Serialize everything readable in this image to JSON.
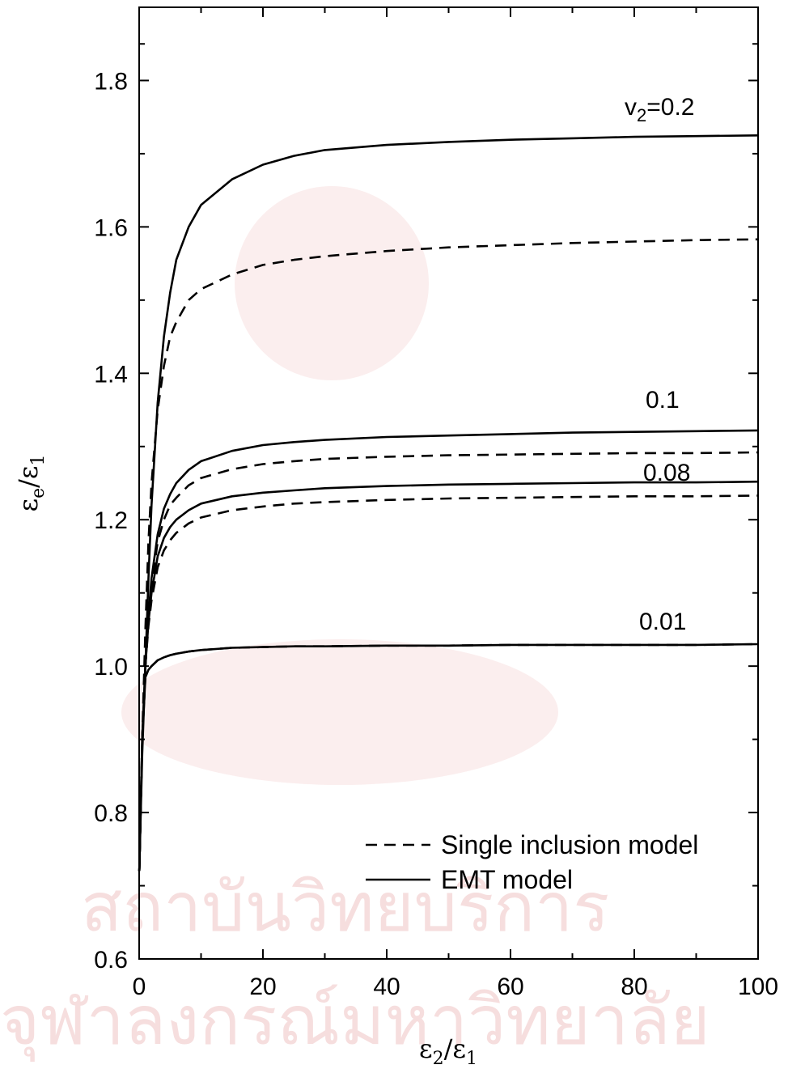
{
  "chart_data": {
    "type": "line",
    "xlabel": {
      "main": "ε",
      "sub": "2",
      "sep": "/",
      "main2": "ε",
      "sub2": "1"
    },
    "ylabel": {
      "main": "ε",
      "sub": "e",
      "sep": "/",
      "main2": "ε",
      "sub2": "1"
    },
    "xlim": [
      0,
      100
    ],
    "ylim": [
      0.6,
      1.9
    ],
    "x_ticks": [
      0,
      20,
      40,
      60,
      80,
      100
    ],
    "x_tick_labels": [
      "0",
      "20",
      "40",
      "60",
      "80",
      "100"
    ],
    "y_ticks": [
      0.6,
      0.8,
      1.0,
      1.2,
      1.4,
      1.6,
      1.8
    ],
    "y_tick_labels": [
      "0.6",
      "0.8",
      "1.0",
      "1.2",
      "1.4",
      "1.6",
      "1.8"
    ],
    "grid": false,
    "legend": {
      "position": "bottom-right",
      "entries": [
        {
          "label": "Single inclusion model",
          "style": "dashed"
        },
        {
          "label": "EMT model",
          "style": "solid"
        }
      ]
    },
    "series_labels": [
      {
        "text": "v",
        "sub": "2",
        "rest": "=0.2"
      },
      {
        "text": "0.1"
      },
      {
        "text": "0.08"
      },
      {
        "text": "0.01"
      }
    ],
    "series": [
      {
        "v2": 0.2,
        "model": "EMT",
        "style": "solid",
        "x": [
          0.02,
          0.5,
          1,
          1.5,
          2,
          3,
          4,
          5,
          6,
          8,
          10,
          15,
          20,
          25,
          30,
          40,
          50,
          60,
          70,
          80,
          90,
          100
        ],
        "y": [
          0.72,
          0.88,
          1.0,
          1.12,
          1.22,
          1.36,
          1.45,
          1.51,
          1.555,
          1.6,
          1.63,
          1.665,
          1.685,
          1.697,
          1.705,
          1.712,
          1.716,
          1.719,
          1.721,
          1.723,
          1.724,
          1.725
        ]
      },
      {
        "v2": 0.2,
        "model": "Single inclusion",
        "style": "dashed",
        "x": [
          0.02,
          0.5,
          1,
          1.5,
          2,
          3,
          4,
          5,
          6,
          8,
          10,
          15,
          20,
          25,
          30,
          40,
          50,
          60,
          70,
          80,
          90,
          100
        ],
        "y": [
          0.72,
          0.9,
          1.05,
          1.17,
          1.25,
          1.35,
          1.41,
          1.45,
          1.47,
          1.5,
          1.515,
          1.535,
          1.548,
          1.555,
          1.56,
          1.567,
          1.572,
          1.575,
          1.578,
          1.58,
          1.582,
          1.583
        ]
      },
      {
        "v2": 0.1,
        "model": "EMT",
        "style": "solid",
        "x": [
          0.02,
          0.5,
          1,
          1.5,
          2,
          3,
          4,
          5,
          6,
          8,
          10,
          15,
          20,
          25,
          30,
          40,
          50,
          60,
          70,
          80,
          90,
          100
        ],
        "y": [
          0.72,
          0.9,
          1.0,
          1.07,
          1.12,
          1.18,
          1.215,
          1.235,
          1.25,
          1.268,
          1.28,
          1.294,
          1.302,
          1.306,
          1.309,
          1.313,
          1.315,
          1.317,
          1.319,
          1.32,
          1.321,
          1.322
        ]
      },
      {
        "v2": 0.1,
        "model": "Single inclusion",
        "style": "dashed",
        "x": [
          0.02,
          0.5,
          1,
          1.5,
          2,
          3,
          4,
          5,
          6,
          8,
          10,
          15,
          20,
          25,
          30,
          40,
          50,
          60,
          70,
          80,
          90,
          100
        ],
        "y": [
          0.72,
          0.9,
          1.0,
          1.07,
          1.11,
          1.17,
          1.2,
          1.22,
          1.23,
          1.247,
          1.257,
          1.269,
          1.276,
          1.28,
          1.283,
          1.286,
          1.288,
          1.289,
          1.29,
          1.291,
          1.291,
          1.292
        ]
      },
      {
        "v2": 0.08,
        "model": "EMT",
        "style": "solid",
        "x": [
          0.02,
          0.5,
          1,
          1.5,
          2,
          3,
          4,
          5,
          6,
          8,
          10,
          15,
          20,
          25,
          30,
          40,
          50,
          60,
          70,
          80,
          90,
          100
        ],
        "y": [
          0.72,
          0.9,
          1.0,
          1.06,
          1.1,
          1.15,
          1.175,
          1.19,
          1.2,
          1.213,
          1.222,
          1.232,
          1.237,
          1.24,
          1.243,
          1.246,
          1.248,
          1.249,
          1.25,
          1.251,
          1.251,
          1.252
        ]
      },
      {
        "v2": 0.08,
        "model": "Single inclusion",
        "style": "dashed",
        "x": [
          0.02,
          0.5,
          1,
          1.5,
          2,
          3,
          4,
          5,
          6,
          8,
          10,
          15,
          20,
          25,
          30,
          40,
          50,
          60,
          70,
          80,
          90,
          100
        ],
        "y": [
          0.72,
          0.9,
          1.0,
          1.055,
          1.09,
          1.135,
          1.158,
          1.172,
          1.182,
          1.195,
          1.203,
          1.213,
          1.218,
          1.222,
          1.224,
          1.227,
          1.229,
          1.23,
          1.231,
          1.232,
          1.232,
          1.233
        ]
      },
      {
        "v2": 0.01,
        "model": "EMT",
        "style": "solid",
        "x": [
          0.02,
          0.5,
          1,
          1.5,
          2,
          3,
          4,
          5,
          6,
          8,
          10,
          15,
          20,
          25,
          30,
          40,
          50,
          60,
          70,
          80,
          90,
          100
        ],
        "y": [
          0.72,
          0.9,
          0.985,
          0.995,
          1.0,
          1.008,
          1.012,
          1.015,
          1.017,
          1.02,
          1.022,
          1.025,
          1.026,
          1.027,
          1.027,
          1.028,
          1.028,
          1.029,
          1.029,
          1.029,
          1.029,
          1.03
        ]
      },
      {
        "v2": 0.01,
        "model": "Single inclusion",
        "style": "dashed",
        "x": [
          0.02,
          0.5,
          1,
          1.5,
          2,
          3,
          4,
          5,
          6,
          8,
          10,
          15,
          20,
          25,
          30,
          40,
          50,
          60,
          70,
          80,
          90,
          100
        ],
        "y": [
          0.72,
          0.9,
          0.985,
          0.995,
          1.0,
          1.008,
          1.012,
          1.015,
          1.017,
          1.02,
          1.022,
          1.025,
          1.026,
          1.027,
          1.027,
          1.028,
          1.028,
          1.029,
          1.029,
          1.029,
          1.029,
          1.03
        ]
      }
    ]
  },
  "watermark": {
    "line1": "สถาบันวิทยบริการ",
    "line2": "จุฬาลงกรณ์มหาวิทยาลัย"
  }
}
